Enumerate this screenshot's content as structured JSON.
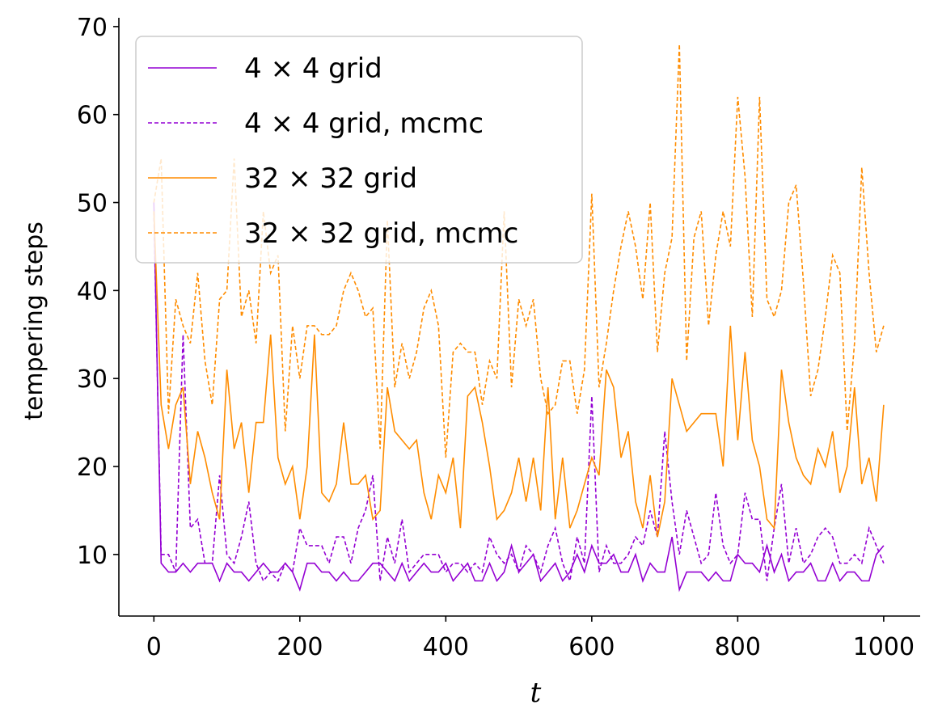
{
  "chart_data": {
    "type": "line",
    "xlabel": "t",
    "ylabel": "tempering steps",
    "xlim": [
      -48,
      1050
    ],
    "ylim": [
      3,
      71
    ],
    "xticks": [
      0,
      200,
      400,
      600,
      800,
      1000
    ],
    "yticks": [
      10,
      20,
      30,
      40,
      50,
      60,
      70
    ],
    "grid": false,
    "legend_position": "top-left",
    "x": [
      0,
      10,
      20,
      30,
      40,
      50,
      60,
      70,
      80,
      90,
      100,
      110,
      120,
      130,
      140,
      150,
      160,
      170,
      180,
      190,
      200,
      210,
      220,
      230,
      240,
      250,
      260,
      270,
      280,
      290,
      300,
      310,
      320,
      330,
      340,
      350,
      360,
      370,
      380,
      390,
      400,
      410,
      420,
      430,
      440,
      450,
      460,
      470,
      480,
      490,
      500,
      510,
      520,
      530,
      540,
      550,
      560,
      570,
      580,
      590,
      600,
      610,
      620,
      630,
      640,
      650,
      660,
      670,
      680,
      690,
      700,
      710,
      720,
      730,
      740,
      750,
      760,
      770,
      780,
      790,
      800,
      810,
      820,
      830,
      840,
      850,
      860,
      870,
      880,
      890,
      900,
      910,
      920,
      930,
      940,
      950,
      960,
      970,
      980,
      990,
      1000
    ],
    "series": [
      {
        "name": "4 × 4 grid",
        "color": "#9400d3",
        "dash": "solid",
        "values": [
          50,
          9,
          8,
          8,
          9,
          8,
          9,
          9,
          9,
          7,
          9,
          8,
          8,
          7,
          8,
          9,
          8,
          8,
          9,
          8,
          6,
          9,
          9,
          8,
          8,
          7,
          8,
          7,
          7,
          8,
          9,
          9,
          8,
          7,
          9,
          7,
          8,
          9,
          8,
          8,
          9,
          7,
          8,
          9,
          7,
          7,
          9,
          7,
          8,
          11,
          8,
          9,
          10,
          7,
          8,
          9,
          7,
          8,
          10,
          8,
          11,
          9,
          9,
          10,
          8,
          8,
          10,
          7,
          9,
          8,
          8,
          12,
          6,
          8,
          8,
          8,
          7,
          8,
          7,
          7,
          10,
          9,
          9,
          8,
          11,
          8,
          10,
          7,
          8,
          8,
          9,
          7,
          7,
          9,
          7,
          8,
          8,
          7,
          7,
          10,
          11
        ]
      },
      {
        "name": "4 × 4 grid, mcmc",
        "color": "#9400d3",
        "dash": "dashed",
        "values": [
          49,
          10,
          10,
          8,
          35,
          13,
          14,
          9,
          9,
          19,
          10,
          9,
          12,
          16,
          9,
          7,
          8,
          7,
          9,
          8,
          13,
          11,
          11,
          11,
          9,
          12,
          12,
          9,
          13,
          15,
          19,
          7,
          12,
          9,
          14,
          8,
          9,
          10,
          10,
          10,
          8,
          9,
          9,
          8,
          9,
          8,
          12,
          10,
          9,
          10,
          8,
          11,
          10,
          8,
          11,
          13,
          9,
          7,
          12,
          9,
          28,
          8,
          11,
          9,
          9,
          10,
          12,
          11,
          15,
          12,
          24,
          16,
          10,
          15,
          12,
          9,
          10,
          17,
          11,
          9,
          10,
          17,
          14,
          14,
          7,
          13,
          18,
          9,
          13,
          9,
          10,
          12,
          13,
          12,
          9,
          9,
          10,
          9,
          13,
          11,
          9
        ]
      },
      {
        "name": "32 × 32 grid",
        "color": "#ff8c00",
        "dash": "solid",
        "values": [
          49,
          27,
          22,
          27,
          29,
          18,
          24,
          21,
          17,
          14,
          31,
          22,
          25,
          17,
          25,
          25,
          35,
          21,
          18,
          20,
          14,
          20,
          35,
          17,
          16,
          18,
          25,
          18,
          18,
          19,
          14,
          15,
          29,
          24,
          23,
          22,
          23,
          17,
          14,
          19,
          17,
          21,
          13,
          28,
          29,
          25,
          20,
          14,
          15,
          17,
          21,
          16,
          21,
          15,
          29,
          14,
          21,
          13,
          15,
          18,
          21,
          19,
          31,
          29,
          21,
          24,
          16,
          13,
          19,
          12,
          16,
          30,
          27,
          24,
          25,
          26,
          26,
          26,
          20,
          36,
          23,
          33,
          23,
          20,
          14,
          13,
          31,
          25,
          21,
          19,
          18,
          22,
          20,
          24,
          17,
          20,
          29,
          18,
          21,
          16,
          27
        ]
      },
      {
        "name": "32 × 32 grid, mcmc",
        "color": "#ff8c00",
        "dash": "dashed",
        "values": [
          50,
          55,
          26,
          39,
          36,
          34,
          42,
          32,
          27,
          39,
          40,
          55,
          37,
          40,
          34,
          49,
          42,
          44,
          24,
          36,
          30,
          36,
          36,
          35,
          35,
          36,
          40,
          42,
          40,
          37,
          38,
          22,
          48,
          29,
          34,
          30,
          33,
          38,
          40,
          36,
          21,
          33,
          34,
          33,
          33,
          27,
          32,
          30,
          49,
          29,
          39,
          36,
          39,
          30,
          26,
          27,
          32,
          32,
          26,
          31,
          51,
          29,
          34,
          40,
          45,
          49,
          45,
          39,
          50,
          33,
          42,
          46,
          68,
          32,
          46,
          49,
          36,
          44,
          49,
          45,
          62,
          53,
          37,
          62,
          39,
          37,
          40,
          50,
          52,
          41,
          28,
          31,
          37,
          44,
          42,
          24,
          34,
          54,
          42,
          33,
          36
        ]
      }
    ]
  }
}
